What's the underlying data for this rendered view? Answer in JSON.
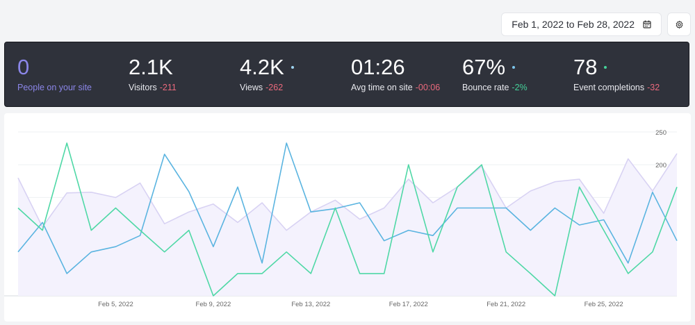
{
  "header": {
    "date_range": "Feb 1, 2022 to Feb 28, 2022",
    "calendar_icon": "calendar-icon",
    "settings_icon": "gear-icon"
  },
  "stats": [
    {
      "value": "0",
      "label": "People on your site",
      "delta": "",
      "delta_sign": "",
      "dot": ""
    },
    {
      "value": "2.1K",
      "label": "Visitors",
      "delta": "-211",
      "delta_sign": "neg",
      "dot": ""
    },
    {
      "value": "4.2K",
      "label": "Views",
      "delta": "-262",
      "delta_sign": "neg",
      "dot": "#9ed3f0"
    },
    {
      "value": "01:26",
      "label": "Avg time on site",
      "delta": "-00:06",
      "delta_sign": "neg",
      "dot": ""
    },
    {
      "value": "67%",
      "label": "Bounce rate",
      "delta": "-2%",
      "delta_sign": "pos",
      "dot": "#7cc5ec"
    },
    {
      "value": "78",
      "label": "Event completions",
      "delta": "-32",
      "delta_sign": "neg",
      "dot": "#45d29a"
    }
  ],
  "colors": {
    "area_fill": "#f4f2fd",
    "area_line": "#d8d2f3",
    "blue": "#5ab4e0",
    "green": "#4fd8a6",
    "panel": "#2f323b"
  },
  "chart_data": {
    "type": "line",
    "x": [
      "Feb 1",
      "Feb 2",
      "Feb 3",
      "Feb 4",
      "Feb 5",
      "Feb 6",
      "Feb 7",
      "Feb 8",
      "Feb 9",
      "Feb 10",
      "Feb 11",
      "Feb 12",
      "Feb 13",
      "Feb 14",
      "Feb 15",
      "Feb 16",
      "Feb 17",
      "Feb 18",
      "Feb 19",
      "Feb 20",
      "Feb 21",
      "Feb 22",
      "Feb 23",
      "Feb 24",
      "Feb 25",
      "Feb 26",
      "Feb 27",
      "Feb 28"
    ],
    "x_tick_labels": [
      {
        "index": 4,
        "label": "Feb 5, 2022"
      },
      {
        "index": 8,
        "label": "Feb 9, 2022"
      },
      {
        "index": 12,
        "label": "Feb 13, 2022"
      },
      {
        "index": 16,
        "label": "Feb 17, 2022"
      },
      {
        "index": 20,
        "label": "Feb 21, 2022"
      },
      {
        "index": 24,
        "label": "Feb 25, 2022"
      }
    ],
    "y_ticks": [
      50,
      100,
      150,
      200,
      250
    ],
    "ylim": [
      0,
      250
    ],
    "grid": true,
    "y_axis_side": "right",
    "series": [
      {
        "style": "area",
        "color": "#d8d2f3",
        "fill": "#f4f2fd",
        "values": [
          180,
          105,
          157,
          158,
          150,
          172,
          110,
          128,
          140,
          112,
          142,
          100,
          128,
          146,
          117,
          134,
          178,
          142,
          166,
          198,
          134,
          160,
          174,
          178,
          126,
          209,
          160,
          217
        ]
      },
      {
        "style": "line",
        "color": "#5ab4e0",
        "values": [
          67,
          112,
          34,
          67,
          75,
          92,
          216,
          159,
          75,
          166,
          50,
          233,
          128,
          133,
          142,
          84,
          100,
          92,
          134,
          134,
          134,
          100,
          134,
          108,
          116,
          50,
          158,
          84
        ]
      },
      {
        "style": "line",
        "color": "#4fd8a6",
        "values": [
          134,
          100,
          233,
          100,
          134,
          100,
          67,
          100,
          0,
          34,
          34,
          67,
          34,
          134,
          34,
          34,
          200,
          67,
          166,
          200,
          67,
          34,
          0,
          166,
          100,
          34,
          67,
          166
        ]
      }
    ]
  }
}
